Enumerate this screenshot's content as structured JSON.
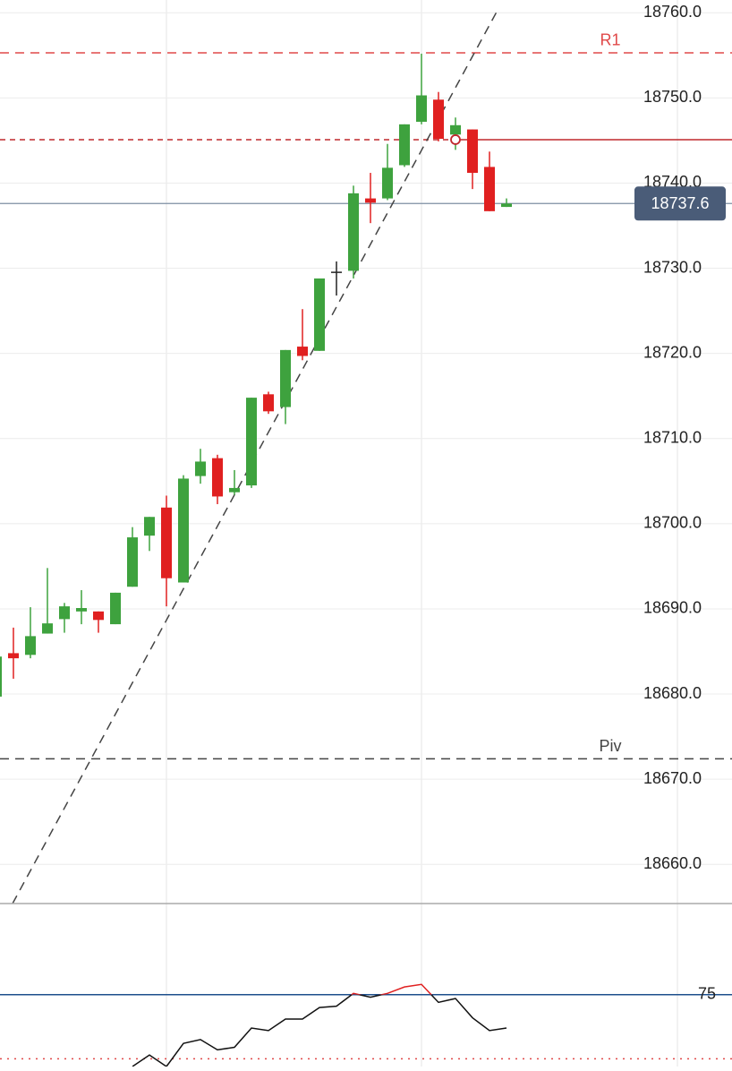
{
  "chart_data": {
    "type": "candlestick",
    "ylim": [
      18655.4,
      18761.5
    ],
    "yticks": [
      {
        "value": 18660,
        "label": "18660.0"
      },
      {
        "value": 18670,
        "label": "18670.0"
      },
      {
        "value": 18680,
        "label": "18680.0"
      },
      {
        "value": 18690,
        "label": "18690.0"
      },
      {
        "value": 18700,
        "label": "18700.0"
      },
      {
        "value": 18710,
        "label": "18710.0"
      },
      {
        "value": 18720,
        "label": "18720.0"
      },
      {
        "value": 18730,
        "label": "18730.0"
      },
      {
        "value": 18740,
        "label": "18740.0"
      },
      {
        "value": 18750,
        "label": "18750.0"
      },
      {
        "value": 18760,
        "label": "18760.0"
      }
    ],
    "grid": true,
    "colors": {
      "up": "#3ea23e",
      "down": "#e02020",
      "flat": "#222222"
    },
    "open": [
      18679.7,
      18684.8,
      18684.6,
      18687.1,
      18688.8,
      18689.7,
      18689.7,
      18688.2,
      18692.6,
      18698.6,
      18701.9,
      18693.1,
      18705.6,
      18707.7,
      18703.7,
      18704.5,
      18715.2,
      18713.7,
      18720.8,
      18720.3,
      18729.6,
      18729.7,
      18738.2,
      18738.2,
      18742.1,
      18747.2,
      18749.8,
      18745.7,
      18746.3,
      18741.9,
      18737.2
    ],
    "high": [
      18684.4,
      18687.8,
      18690.2,
      18694.8,
      18690.7,
      18692.2,
      18689.7,
      18691.9,
      18699.6,
      18700.8,
      18703.3,
      18705.7,
      18708.8,
      18708.1,
      18706.3,
      18714.8,
      18715.5,
      18720.4,
      18725.2,
      18728.8,
      18730.8,
      18739.7,
      18741.2,
      18744.6,
      18746.9,
      18755.2,
      18750.7,
      18747.7,
      18746.3,
      18743.7,
      18738.2
    ],
    "low": [
      18679.7,
      18681.8,
      18684.2,
      18687.1,
      18687.2,
      18688.2,
      18687.2,
      18688.2,
      18692.6,
      18696.8,
      18690.3,
      18693.1,
      18704.7,
      18702.3,
      18703.4,
      18704.2,
      18712.9,
      18711.7,
      18719.2,
      18720.3,
      18726.8,
      18728.8,
      18735.3,
      18738.0,
      18741.9,
      18746.9,
      18744.9,
      18743.9,
      18739.3,
      18736.7,
      18737.2
    ],
    "close": [
      18684.4,
      18684.2,
      18686.8,
      18688.3,
      18690.3,
      18690.1,
      18688.7,
      18691.9,
      18698.4,
      18700.8,
      18693.6,
      18705.3,
      18707.3,
      18703.2,
      18704.2,
      18714.8,
      18713.2,
      18720.4,
      18719.7,
      18728.8,
      18729.6,
      18738.8,
      18737.7,
      18741.8,
      18746.9,
      18750.3,
      18745.2,
      18746.8,
      18741.2,
      18736.7,
      18737.6
    ],
    "last_price": 18737.6,
    "levels": [
      {
        "name": "R1",
        "value": 18755.3,
        "color": "#e04848"
      },
      {
        "name": "Piv",
        "value": 18672.4,
        "color": "#444444"
      }
    ],
    "order_level": {
      "value": 18745.1,
      "start": 27,
      "color": "#c0282d"
    },
    "trendline": {
      "x": [
        0.95,
        29.5
      ],
      "y": [
        18655.4,
        18760.4
      ]
    },
    "indicator": {
      "ylim": [
        69.4,
        82.1
      ],
      "yticks": [
        75
      ],
      "lower_level": 70,
      "values": [
        null,
        null,
        null,
        null,
        null,
        null,
        null,
        null,
        69.4,
        70.3,
        69.4,
        71.2,
        71.5,
        70.7,
        70.9,
        72.4,
        72.2,
        73.1,
        73.1,
        74.0,
        74.1,
        75.1,
        74.8,
        75.1,
        75.6,
        75.8,
        74.4,
        74.7,
        73.2,
        72.2,
        72.4
      ]
    }
  }
}
